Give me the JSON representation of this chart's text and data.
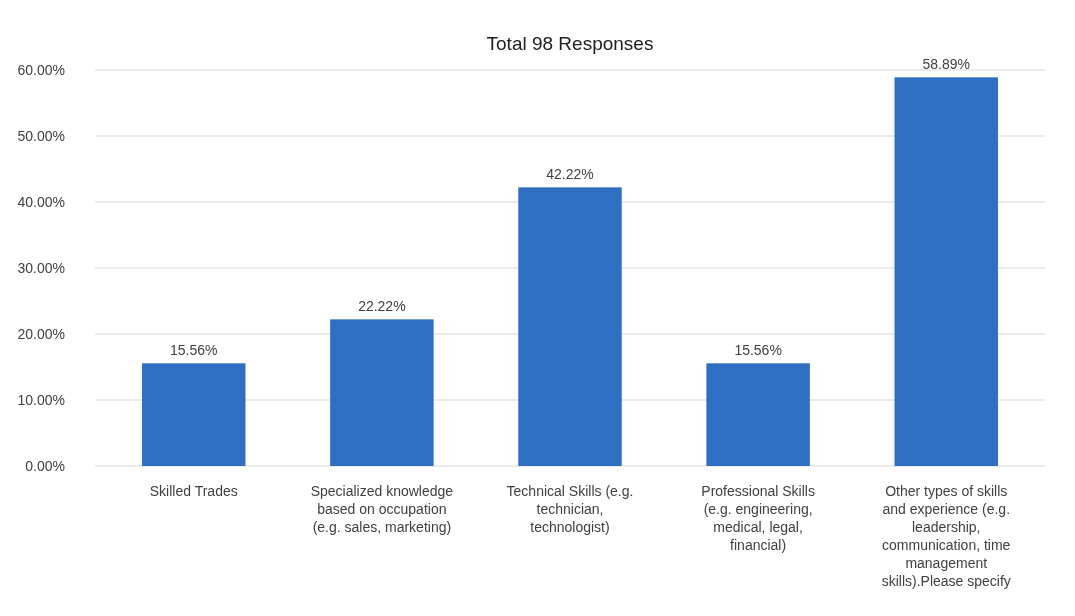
{
  "chart_data": {
    "type": "bar",
    "title": "Total 98 Responses",
    "categories": [
      "Skilled Trades",
      "Specialized knowledge based on occupation (e.g. sales, marketing)",
      "Technical Skills (e.g. technician, technologist)",
      "Professional Skills (e.g. engineering, medical, legal, financial)",
      "Other types of skills and experience (e.g. leadership, communication, time management skills).Please specify"
    ],
    "values": [
      15.56,
      22.22,
      42.22,
      15.56,
      58.89
    ],
    "value_labels": [
      "15.56%",
      "22.22%",
      "42.22%",
      "15.56%",
      "58.89%"
    ],
    "color": "#2e6fc4",
    "ylim": [
      0,
      60
    ],
    "yticks": [
      {
        "value": 0,
        "label": "0.00%"
      },
      {
        "value": 10,
        "label": "10.00%"
      },
      {
        "value": 20,
        "label": "20.00%"
      },
      {
        "value": 30,
        "label": "30.00%"
      },
      {
        "value": 40,
        "label": "40.00%"
      },
      {
        "value": 50,
        "label": "50.00%"
      },
      {
        "value": 60,
        "label": "60.00%"
      }
    ],
    "grid": true
  }
}
